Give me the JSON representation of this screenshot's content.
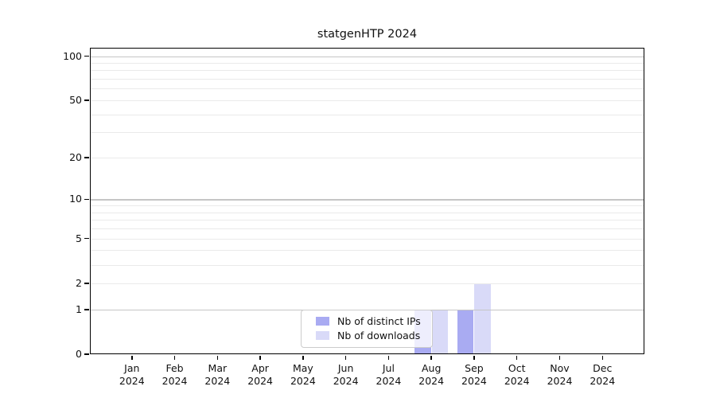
{
  "chart_data": {
    "type": "bar",
    "title": "statgenHTP 2024",
    "categories": [
      "Jan",
      "Feb",
      "Mar",
      "Apr",
      "May",
      "Jun",
      "Jul",
      "Aug",
      "Sep",
      "Oct",
      "Nov",
      "Dec"
    ],
    "year_label": "2024",
    "series": [
      {
        "name": "Nb of distinct IPs",
        "color": "#a9abf2",
        "values": [
          0,
          0,
          0,
          0,
          0,
          0,
          0,
          1,
          1,
          0,
          0,
          0
        ]
      },
      {
        "name": "Nb of downloads",
        "color": "#d9daf8",
        "values": [
          0,
          0,
          0,
          0,
          0,
          0,
          0,
          1,
          2,
          0,
          0,
          0
        ]
      }
    ],
    "xlabel": "",
    "ylabel": "",
    "yscale": "log1p",
    "ylim": [
      0,
      114
    ],
    "yticks": [
      0,
      1,
      2,
      5,
      10,
      20,
      50,
      100
    ],
    "yticks_minor": [
      3,
      4,
      6,
      7,
      8,
      9,
      30,
      40,
      60,
      70,
      80,
      90
    ],
    "grid": "horizontal",
    "legend_position": "inside-bottom-center"
  },
  "colors": {
    "grid_major": "#c5c5c5",
    "grid_minor": "#eaeaea",
    "axis": "#000000",
    "legend_border": "#cccccc",
    "background": "#ffffff"
  }
}
